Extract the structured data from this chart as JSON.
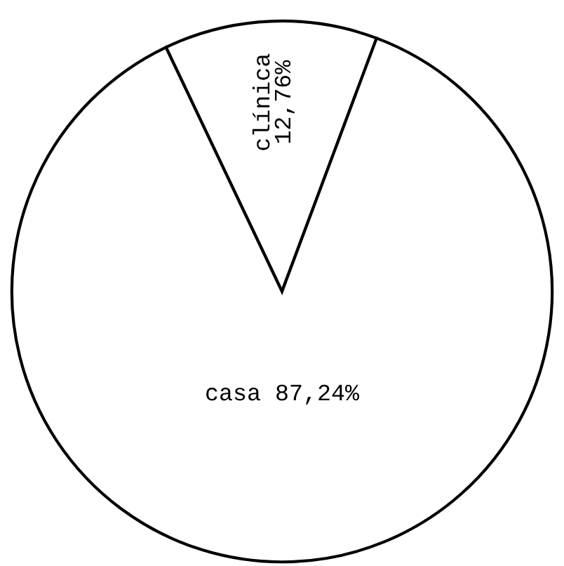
{
  "chart_data": {
    "type": "pie",
    "categories": [
      "clínica",
      "casa"
    ],
    "values": [
      12.76,
      87.24
    ],
    "colors": [
      "#ffffff",
      "#ffffff"
    ],
    "value_labels": [
      "12,76%",
      "87,24%"
    ],
    "legend": false
  }
}
